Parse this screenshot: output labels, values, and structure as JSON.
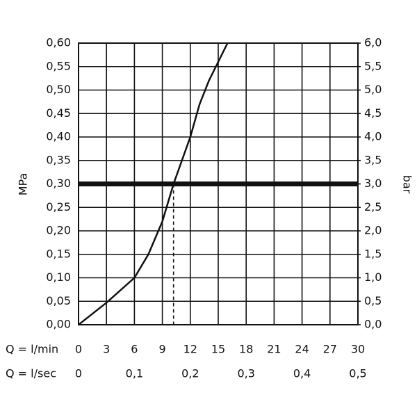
{
  "chart_data": {
    "type": "line",
    "x": [
      0,
      3,
      6,
      7.5,
      9,
      10.2,
      12,
      13,
      14,
      15,
      16
    ],
    "values": [
      0,
      0.047,
      0.1,
      0.15,
      0.22,
      0.3,
      0.4,
      0.47,
      0.52,
      0.56,
      0.6
    ],
    "color": "#111111",
    "ylabel": "MPa",
    "y2label": "bar",
    "xlabel": "Q = l/min",
    "x2label": "Q = l/sec",
    "xlim": [
      0,
      30
    ],
    "xticks": [
      0,
      3,
      6,
      9,
      12,
      15,
      18,
      21,
      24,
      27,
      30
    ],
    "x2lim": [
      0,
      0.5
    ],
    "x2ticks": [
      0,
      {
        "value": 0.1,
        "label": "0,1"
      },
      {
        "value": 0.2,
        "label": "0,2"
      },
      {
        "value": 0.3,
        "label": "0,3"
      },
      {
        "value": 0.4,
        "label": "0,4"
      },
      {
        "value": 0.5,
        "label": "0,5"
      }
    ],
    "ylim": [
      0,
      0.6
    ],
    "yticks": [
      {
        "value": 0,
        "label": "0,00"
      },
      {
        "value": 0.05,
        "label": "0,05"
      },
      {
        "value": 0.1,
        "label": "0,10"
      },
      {
        "value": 0.15,
        "label": "0,15"
      },
      {
        "value": 0.2,
        "label": "0,20"
      },
      {
        "value": 0.25,
        "label": "0,25"
      },
      {
        "value": 0.3,
        "label": "0,30"
      },
      {
        "value": 0.35,
        "label": "0,35"
      },
      {
        "value": 0.4,
        "label": "0,40"
      },
      {
        "value": 0.45,
        "label": "0,45"
      },
      {
        "value": 0.5,
        "label": "0,50"
      },
      {
        "value": 0.55,
        "label": "0,55"
      },
      {
        "value": 0.6,
        "label": "0,60"
      }
    ],
    "y2lim": [
      0,
      6
    ],
    "y2ticks": [
      {
        "value": 0,
        "label": "0,0"
      },
      {
        "value": 0.5,
        "label": "0,5"
      },
      {
        "value": 1,
        "label": "1,0"
      },
      {
        "value": 1.5,
        "label": "1,5"
      },
      {
        "value": 2,
        "label": "2,0"
      },
      {
        "value": 2.5,
        "label": "2,5"
      },
      {
        "value": 3,
        "label": "3,0"
      },
      {
        "value": 3.5,
        "label": "3,5"
      },
      {
        "value": 4,
        "label": "4,0"
      },
      {
        "value": 4.5,
        "label": "4,5"
      },
      {
        "value": 5,
        "label": "5,0"
      },
      {
        "value": 5.5,
        "label": "5,5"
      },
      {
        "value": 6,
        "label": "6,0"
      }
    ],
    "reference_y": 0.3,
    "reference_x": 10.2,
    "grid": true
  }
}
